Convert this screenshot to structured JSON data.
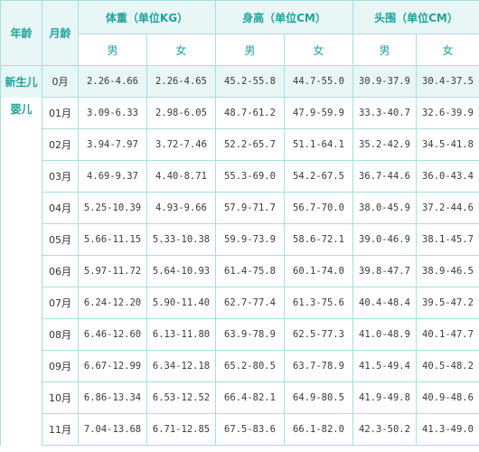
{
  "header": {
    "age": "年龄",
    "month": "月龄",
    "weight": "体重（单位KG）",
    "height": "身高（单位CM）",
    "head": "头围（单位CM）",
    "male": "男",
    "female": "女"
  },
  "groups": {
    "newborn": "新生儿",
    "infant": "婴儿"
  },
  "rows": [
    {
      "month": "0月",
      "w_m": "2.26-4.66",
      "w_f": "2.26-4.65",
      "h_m": "45.2-55.8",
      "h_f": "44.7-55.0",
      "c_m": "30.9-37.9",
      "c_f": "30.4-37.5"
    },
    {
      "month": "01月",
      "w_m": "3.09-6.33",
      "w_f": "2.98-6.05",
      "h_m": "48.7-61.2",
      "h_f": "47.9-59.9",
      "c_m": "33.3-40.7",
      "c_f": "32.6-39.9"
    },
    {
      "month": "02月",
      "w_m": "3.94-7.97",
      "w_f": "3.72-7.46",
      "h_m": "52.2-65.7",
      "h_f": "51.1-64.1",
      "c_m": "35.2-42.9",
      "c_f": "34.5-41.8"
    },
    {
      "month": "03月",
      "w_m": "4.69-9.37",
      "w_f": "4.40-8.71",
      "h_m": "55.3-69.0",
      "h_f": "54.2-67.5",
      "c_m": "36.7-44.6",
      "c_f": "36.0-43.4"
    },
    {
      "month": "04月",
      "w_m": "5.25-10.39",
      "w_f": "4.93-9.66",
      "h_m": "57.9-71.7",
      "h_f": "56.7-70.0",
      "c_m": "38.0-45.9",
      "c_f": "37.2-44.6"
    },
    {
      "month": "05月",
      "w_m": "5.66-11.15",
      "w_f": "5.33-10.38",
      "h_m": "59.9-73.9",
      "h_f": "58.6-72.1",
      "c_m": "39.0-46.9",
      "c_f": "38.1-45.7"
    },
    {
      "month": "06月",
      "w_m": "5.97-11.72",
      "w_f": "5.64-10.93",
      "h_m": "61.4-75.8",
      "h_f": "60.1-74.0",
      "c_m": "39.8-47.7",
      "c_f": "38.9-46.5"
    },
    {
      "month": "07月",
      "w_m": "6.24-12.20",
      "w_f": "5.90-11.40",
      "h_m": "62.7-77.4",
      "h_f": "61.3-75.6",
      "c_m": "40.4-48.4",
      "c_f": "39.5-47.2"
    },
    {
      "month": "08月",
      "w_m": "6.46-12.60",
      "w_f": "6.13-11.80",
      "h_m": "63.9-78.9",
      "h_f": "62.5-77.3",
      "c_m": "41.0-48.9",
      "c_f": "40.1-47.7"
    },
    {
      "month": "09月",
      "w_m": "6.67-12.99",
      "w_f": "6.34-12.18",
      "h_m": "65.2-80.5",
      "h_f": "63.7-78.9",
      "c_m": "41.5-49.4",
      "c_f": "40.5-48.2"
    },
    {
      "month": "10月",
      "w_m": "6.86-13.34",
      "w_f": "6.53-12.52",
      "h_m": "66.4-82.1",
      "h_f": "64.9-80.5",
      "c_m": "41.9-49.8",
      "c_f": "40.9-48.6"
    },
    {
      "month": "11月",
      "w_m": "7.04-13.68",
      "w_f": "6.71-12.85",
      "h_m": "67.5-83.6",
      "h_f": "66.1-82.0",
      "c_m": "42.3-50.2",
      "c_f": "41.3-49.0"
    }
  ]
}
